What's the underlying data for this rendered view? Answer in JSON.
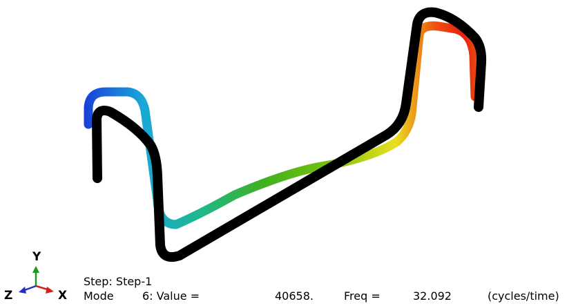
{
  "triad": {
    "y_label": "Y",
    "z_label": "Z",
    "x_label": "X"
  },
  "status": {
    "step": "Step: Step-1",
    "mode_label": "Mode",
    "mode_value": "6: Value =",
    "value": "40658.",
    "freq_label": "Freq =",
    "freq": "32.092",
    "freq_unit": "(cycles/time)"
  }
}
